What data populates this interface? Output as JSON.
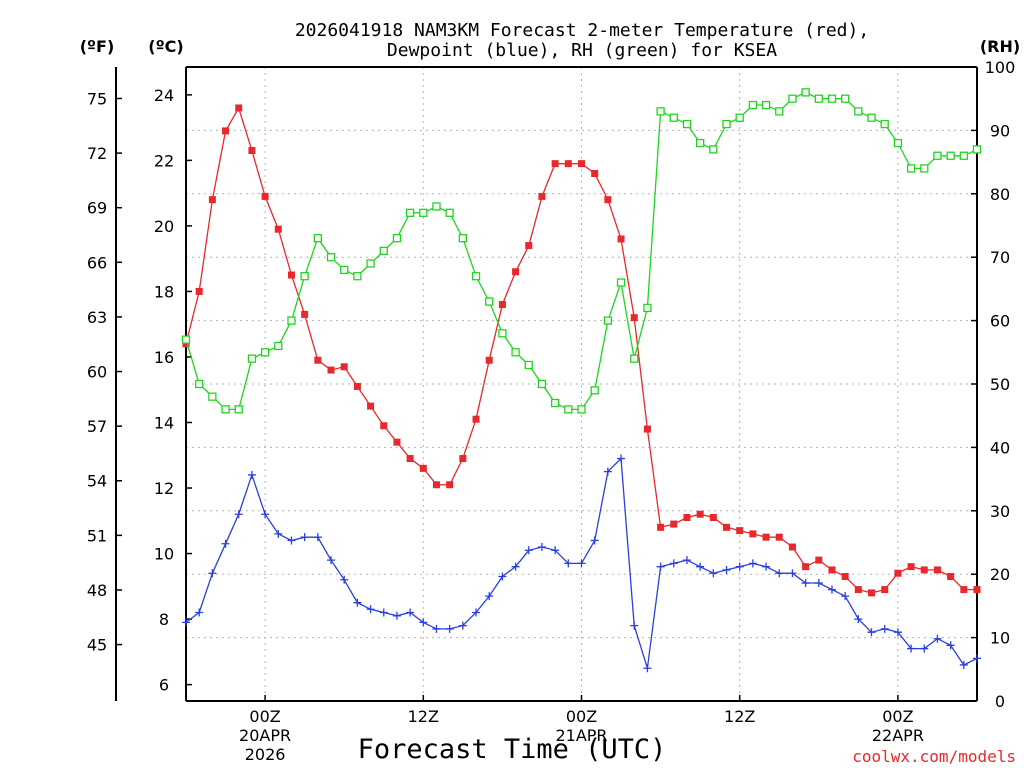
{
  "chart_data": {
    "type": "line",
    "title_lines": [
      "2026041918 NAM3KM Forecast 2-meter Temperature (red),",
      "Dewpoint (blue), RH (green) for KSEA"
    ],
    "xlabel": "Forecast Time (UTC)",
    "credit": "coolwx.com/models",
    "left_unit_f": "(ºF)",
    "left_unit_c": "(ºC)",
    "right_unit": "(RH)",
    "x_hour_range": [
      0,
      60
    ],
    "celsius_range": [
      5.5,
      24.85
    ],
    "rh_range": [
      0,
      100
    ],
    "fahrenheit_ticks": [
      "75",
      "72",
      "69",
      "66",
      "63",
      "60",
      "57",
      "54",
      "51",
      "48",
      "45"
    ],
    "celsius_ticks": [
      "24",
      "22",
      "20",
      "18",
      "16",
      "14",
      "12",
      "10",
      "8",
      "6"
    ],
    "rh_ticks": [
      "100",
      "90",
      "80",
      "70",
      "60",
      "50",
      "40",
      "30",
      "20",
      "10",
      "0"
    ],
    "x_ticks": [
      {
        "hour": 6,
        "label": "00Z",
        "sub1": "20APR",
        "sub2": "2026"
      },
      {
        "hour": 18,
        "label": "12Z",
        "sub1": "",
        "sub2": ""
      },
      {
        "hour": 30,
        "label": "00Z",
        "sub1": "21APR",
        "sub2": ""
      },
      {
        "hour": 42,
        "label": "12Z",
        "sub1": "",
        "sub2": ""
      },
      {
        "hour": 54,
        "label": "00Z",
        "sub1": "22APR",
        "sub2": ""
      }
    ],
    "series": [
      {
        "name": "2-meter Temperature",
        "units": "°C",
        "color": "#e8282b",
        "marker": "filled-square",
        "values": [
          16.4,
          18.0,
          20.8,
          22.9,
          23.6,
          22.3,
          20.9,
          19.9,
          18.5,
          17.3,
          15.9,
          15.6,
          15.7,
          15.1,
          14.5,
          13.9,
          13.4,
          12.9,
          12.6,
          12.1,
          12.1,
          12.9,
          14.1,
          15.9,
          17.6,
          18.6,
          19.4,
          20.9,
          21.9,
          21.9,
          21.9,
          21.6,
          20.8,
          19.6,
          17.2,
          13.8,
          10.8,
          10.9,
          11.1,
          11.2,
          11.1,
          10.8,
          10.7,
          10.6,
          10.5,
          10.5,
          10.2,
          9.6,
          9.8,
          9.5,
          9.3,
          8.9,
          8.8,
          8.9,
          9.4,
          9.6,
          9.5,
          9.5,
          9.3,
          8.9,
          8.9
        ]
      },
      {
        "name": "Dewpoint",
        "units": "°C",
        "color": "#2a3fe0",
        "marker": "plus",
        "values": [
          7.9,
          8.2,
          9.4,
          10.3,
          11.2,
          12.4,
          11.2,
          10.6,
          10.4,
          10.5,
          10.5,
          9.8,
          9.2,
          8.5,
          8.3,
          8.2,
          8.1,
          8.2,
          7.9,
          7.7,
          7.7,
          7.8,
          8.2,
          8.7,
          9.3,
          9.6,
          10.1,
          10.2,
          10.1,
          9.7,
          9.7,
          10.4,
          12.5,
          12.9,
          7.8,
          6.5,
          9.6,
          9.7,
          9.8,
          9.6,
          9.4,
          9.5,
          9.6,
          9.7,
          9.6,
          9.4,
          9.4,
          9.1,
          9.1,
          8.9,
          8.7,
          8.0,
          7.6,
          7.7,
          7.6,
          7.1,
          7.1,
          7.4,
          7.2,
          6.6,
          6.8
        ]
      },
      {
        "name": "RH",
        "units": "%",
        "color": "#1ed61e",
        "marker": "open-square",
        "values": [
          57,
          50,
          48,
          46,
          46,
          54,
          55,
          56,
          60,
          67,
          73,
          70,
          68,
          67,
          69,
          71,
          73,
          77,
          77,
          78,
          77,
          73,
          67,
          63,
          58,
          55,
          53,
          50,
          47,
          46,
          46,
          49,
          60,
          66,
          54,
          62,
          93,
          92,
          91,
          88,
          87,
          91,
          92,
          94,
          94,
          93,
          95,
          96,
          95,
          95,
          95,
          93,
          92,
          91,
          88,
          84,
          84,
          86,
          86,
          86,
          87
        ]
      }
    ]
  }
}
